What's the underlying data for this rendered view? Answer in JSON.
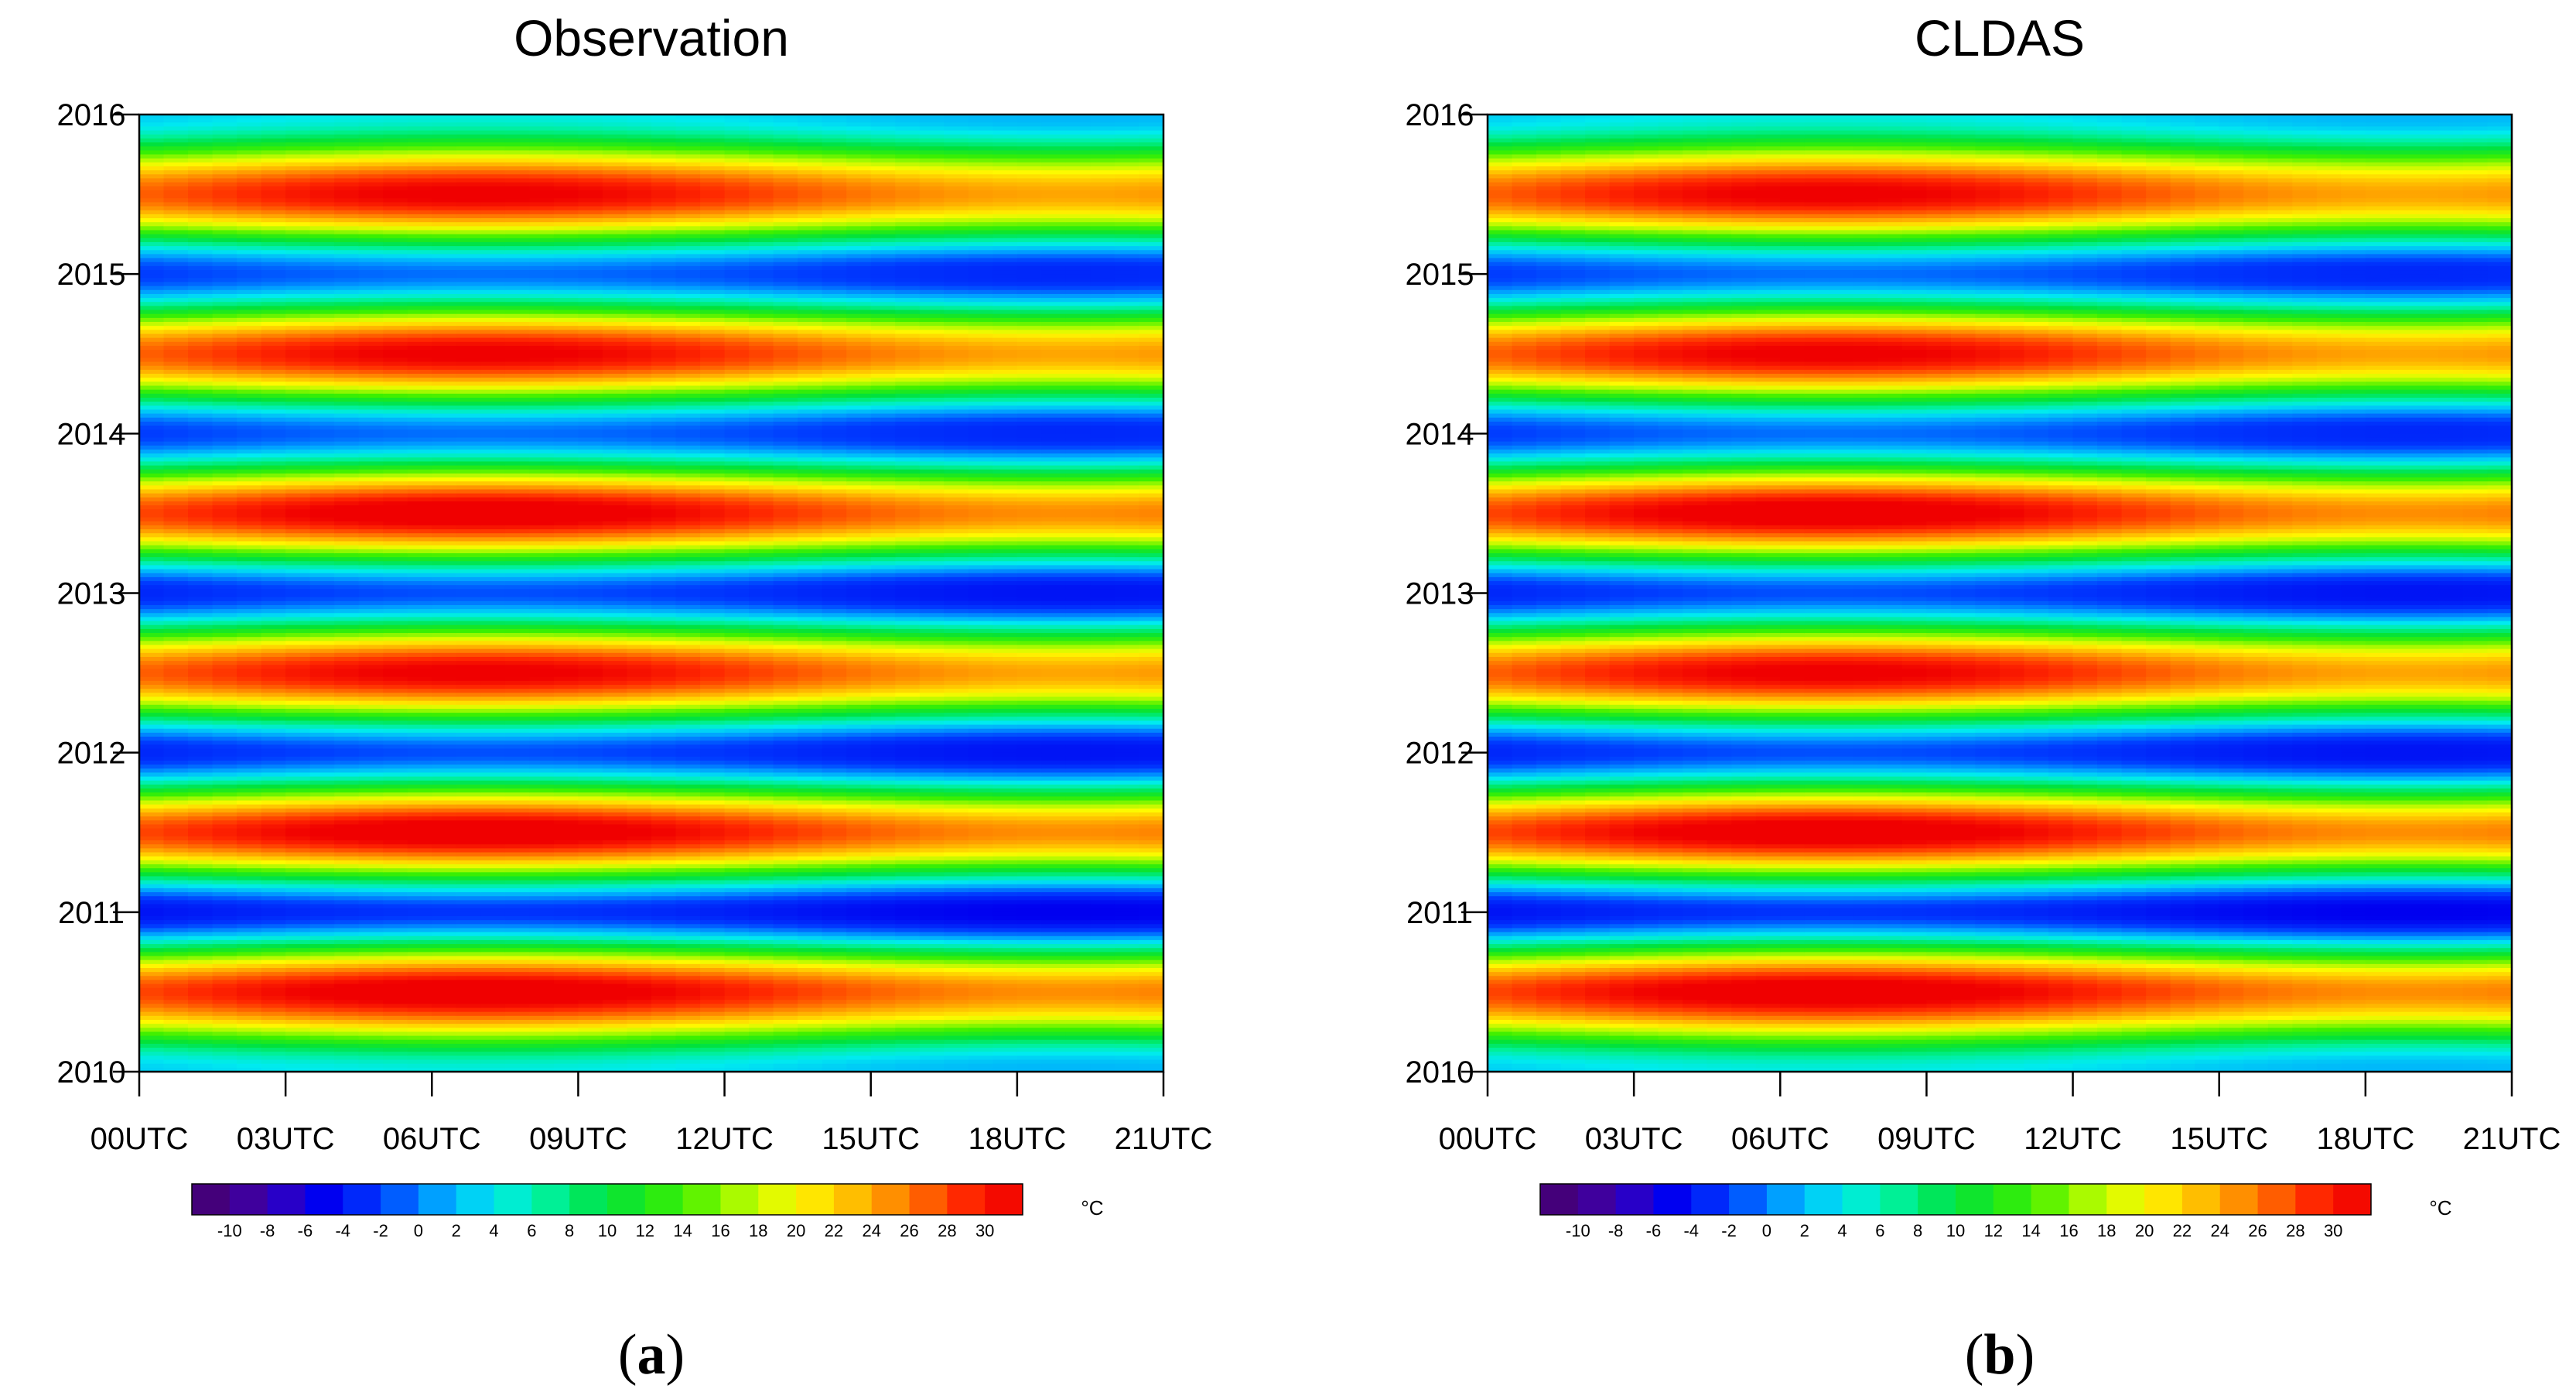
{
  "chart_data": [
    {
      "type": "heatmap",
      "panel_label": "a",
      "title": "Observation",
      "xlabel": "",
      "ylabel": "",
      "x_ticks": [
        "00UTC",
        "03UTC",
        "06UTC",
        "09UTC",
        "12UTC",
        "15UTC",
        "18UTC",
        "21UTC"
      ],
      "xlim": [
        0,
        21
      ],
      "y_ticks": [
        "2010",
        "2011",
        "2012",
        "2013",
        "2014",
        "2015",
        "2016"
      ],
      "ylim": [
        2010,
        2016
      ],
      "colorbar": {
        "unit": "°C",
        "tick_labels": [
          "-10",
          "-8",
          "-6",
          "-4",
          "-2",
          "0",
          "2",
          "4",
          "6",
          "8",
          "10",
          "12",
          "14",
          "16",
          "18",
          "20",
          "22",
          "24",
          "26",
          "28",
          "30"
        ],
        "range": [
          -11,
          31
        ]
      },
      "summer_peaks": [
        {
          "year_frac": 2010.5,
          "max_temp": 31
        },
        {
          "year_frac": 2011.5,
          "max_temp": 31
        },
        {
          "year_frac": 2012.5,
          "max_temp": 30
        },
        {
          "year_frac": 2013.5,
          "max_temp": 31
        },
        {
          "year_frac": 2014.5,
          "max_temp": 30
        },
        {
          "year_frac": 2015.5,
          "max_temp": 30
        }
      ],
      "winter_troughs": [
        {
          "year_frac": 2010.0,
          "min_temp": 4
        },
        {
          "year_frac": 2011.0,
          "min_temp": -3
        },
        {
          "year_frac": 2012.0,
          "min_temp": -2
        },
        {
          "year_frac": 2013.0,
          "min_temp": -2
        },
        {
          "year_frac": 2014.0,
          "min_temp": -1
        },
        {
          "year_frac": 2015.0,
          "min_temp": -1
        },
        {
          "year_frac": 2016.0,
          "min_temp": 4
        }
      ]
    },
    {
      "type": "heatmap",
      "panel_label": "b",
      "title": "CLDAS",
      "xlabel": "",
      "ylabel": "",
      "x_ticks": [
        "00UTC",
        "03UTC",
        "06UTC",
        "09UTC",
        "12UTC",
        "15UTC",
        "18UTC",
        "21UTC"
      ],
      "xlim": [
        0,
        21
      ],
      "y_ticks": [
        "2016",
        "2015",
        "2014",
        "2013",
        "2012",
        "2011",
        "2010"
      ],
      "ylim": [
        2010,
        2016
      ],
      "colorbar": {
        "unit": "°C",
        "tick_labels": [
          "-10",
          "-8",
          "-6",
          "-4",
          "-2",
          "0",
          "2",
          "4",
          "6",
          "8",
          "10",
          "12",
          "14",
          "16",
          "18",
          "20",
          "22",
          "24",
          "26",
          "28",
          "30"
        ],
        "range": [
          -11,
          31
        ]
      },
      "summer_peaks": [
        {
          "year_frac": 2010.5,
          "max_temp": 31
        },
        {
          "year_frac": 2011.5,
          "max_temp": 31
        },
        {
          "year_frac": 2012.5,
          "max_temp": 30
        },
        {
          "year_frac": 2013.5,
          "max_temp": 31
        },
        {
          "year_frac": 2014.5,
          "max_temp": 30
        },
        {
          "year_frac": 2015.5,
          "max_temp": 30
        }
      ],
      "winter_troughs": [
        {
          "year_frac": 2010.0,
          "min_temp": 4
        },
        {
          "year_frac": 2011.0,
          "min_temp": -3
        },
        {
          "year_frac": 2012.0,
          "min_temp": -2
        },
        {
          "year_frac": 2013.0,
          "min_temp": -2
        },
        {
          "year_frac": 2014.0,
          "min_temp": -1
        },
        {
          "year_frac": 2015.0,
          "min_temp": -1
        },
        {
          "year_frac": 2016.0,
          "min_temp": 4
        }
      ]
    }
  ]
}
